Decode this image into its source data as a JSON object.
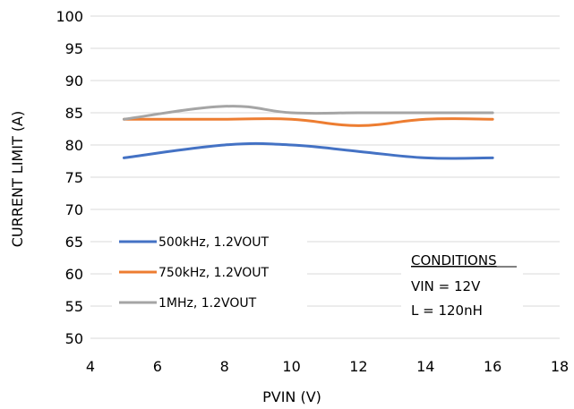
{
  "chart_data": {
    "type": "line",
    "xlabel": "PVIN (V)",
    "ylabel": "CURRENT LIMIT (A)",
    "xlim": [
      4,
      18
    ],
    "ylim": [
      50,
      100
    ],
    "xticks": [
      "4",
      "6",
      "8",
      "10",
      "12",
      "14",
      "16",
      "18"
    ],
    "yticks": [
      "50",
      "55",
      "60",
      "65",
      "70",
      "75",
      "80",
      "85",
      "90",
      "95",
      "100"
    ],
    "grid": "horizontal",
    "legend_position": "left",
    "series": [
      {
        "name": "500kHz, 1.2VOUT",
        "color": "#4472C4",
        "x": [
          5,
          8,
          10,
          12,
          14,
          16
        ],
        "y": [
          78,
          80,
          80,
          79,
          78,
          78
        ]
      },
      {
        "name": "750kHz, 1.2VOUT",
        "color": "#ED7D31",
        "x": [
          5,
          8,
          10,
          12,
          14,
          16
        ],
        "y": [
          84,
          84,
          84,
          83,
          84,
          84
        ]
      },
      {
        "name": "1MHz, 1.2VOUT",
        "color": "#A5A5A5",
        "x": [
          5,
          8,
          10,
          12,
          14,
          16
        ],
        "y": [
          84,
          86,
          85,
          85,
          85,
          85
        ]
      }
    ],
    "annotation": {
      "title": "CONDITIONS",
      "lines": [
        "VIN = 12V",
        "L = 120nH"
      ]
    }
  }
}
